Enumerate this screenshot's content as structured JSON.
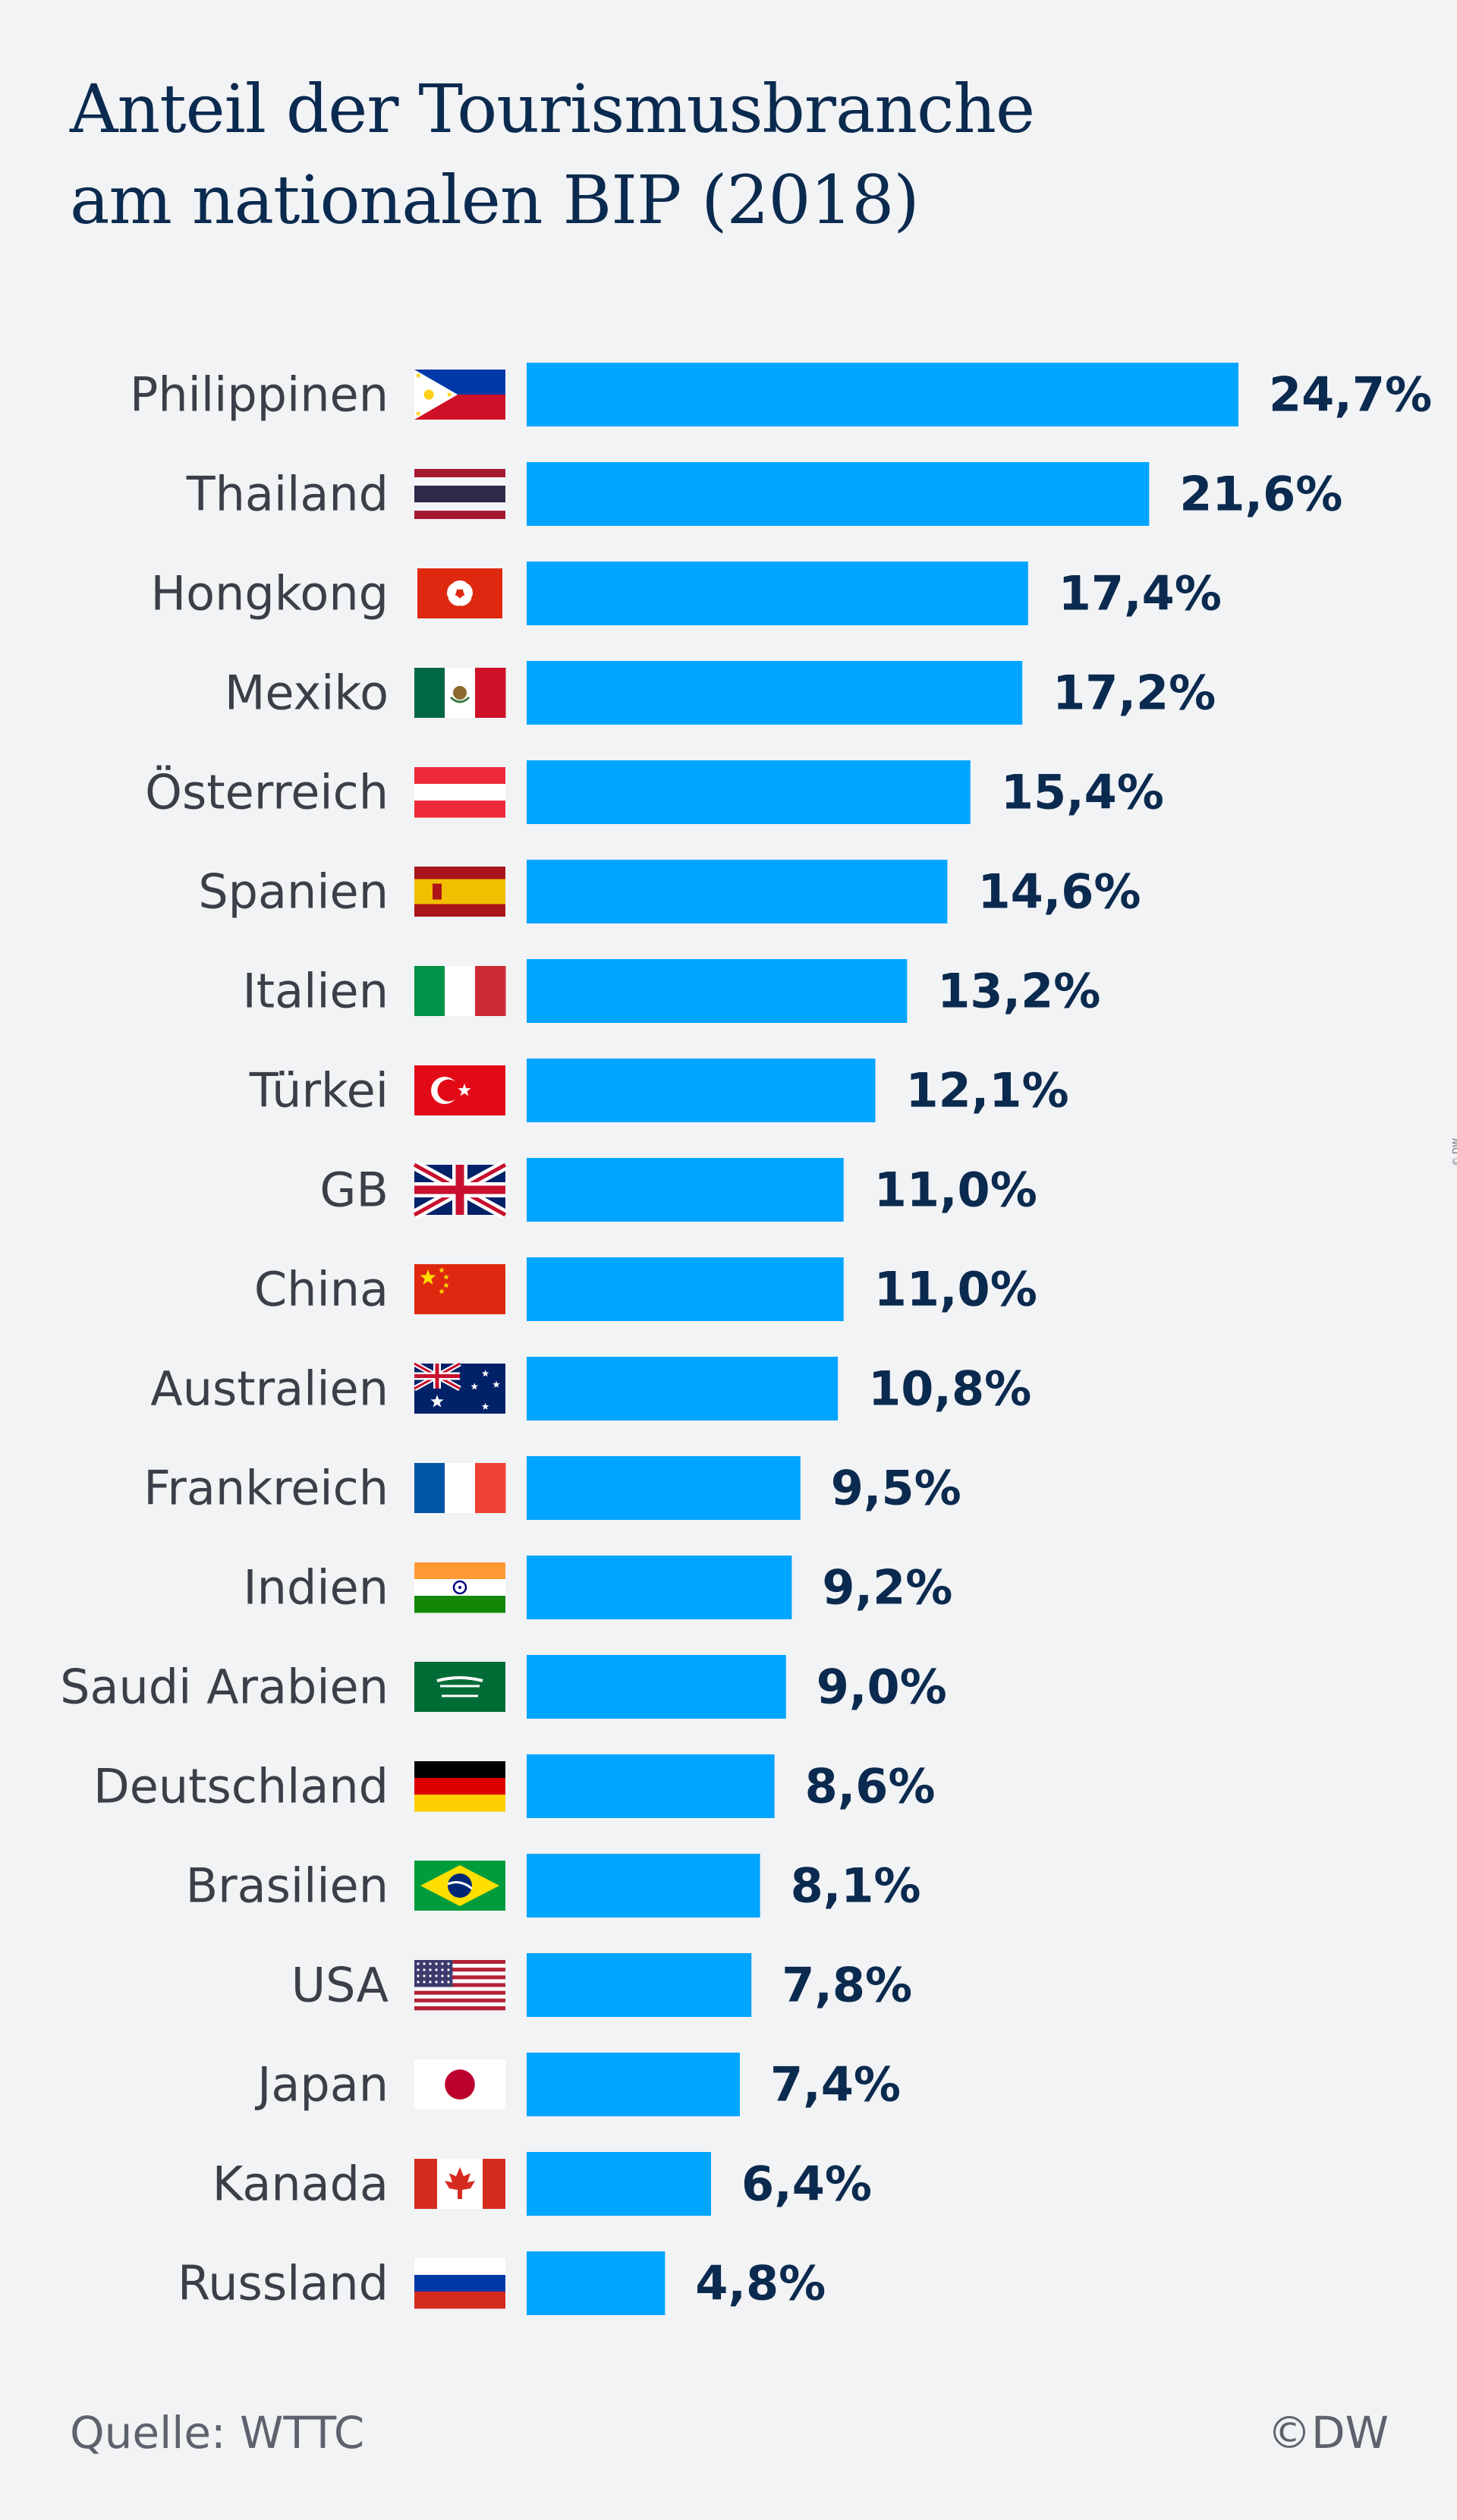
{
  "title_lines": [
    "Anteil der Tourismusbranche",
    "am nationalen BIP (2018)"
  ],
  "source": "Quelle: WTTC",
  "copyright": "©DW",
  "side_mark": "© DW",
  "colors": {
    "bar": "#00a5ff",
    "title": "#0b2a4f",
    "background": "#f2f3f5"
  },
  "chart_data": {
    "type": "bar",
    "orientation": "horizontal",
    "title": "Anteil der Tourismusbranche am nationalen BIP (2018)",
    "xlabel": "",
    "ylabel": "",
    "unit": "%",
    "xlim": [
      0,
      24.7
    ],
    "grid": false,
    "categories": [
      "Philippinen",
      "Thailand",
      "Hongkong",
      "Mexiko",
      "Österreich",
      "Spanien",
      "Italien",
      "Türkei",
      "GB",
      "China",
      "Australien",
      "Frankreich",
      "Indien",
      "Saudi Arabien",
      "Deutschland",
      "Brasilien",
      "USA",
      "Japan",
      "Kanada",
      "Russland"
    ],
    "values": [
      24.7,
      21.6,
      17.4,
      17.2,
      15.4,
      14.6,
      13.2,
      12.1,
      11.0,
      11.0,
      10.8,
      9.5,
      9.2,
      9.0,
      8.6,
      8.1,
      7.8,
      7.4,
      6.4,
      4.8
    ],
    "value_labels": [
      "24,7%",
      "21,6%",
      "17,4%",
      "17,2%",
      "15,4%",
      "14,6%",
      "13,2%",
      "12,1%",
      "11,0%",
      "11,0%",
      "10,8%",
      "9,5%",
      "9,2%",
      "9,0%",
      "8,6%",
      "8,1%",
      "7,8%",
      "7,4%",
      "6,4%",
      "4,8%"
    ],
    "flags": [
      "philippines-flag",
      "thailand-flag",
      "hongkong-flag",
      "mexico-flag",
      "austria-flag",
      "spain-flag",
      "italy-flag",
      "turkey-flag",
      "uk-flag",
      "china-flag",
      "australia-flag",
      "france-flag",
      "india-flag",
      "saudi-arabia-flag",
      "germany-flag",
      "brazil-flag",
      "usa-flag",
      "japan-flag",
      "canada-flag",
      "russia-flag"
    ],
    "source": "WTTC"
  }
}
